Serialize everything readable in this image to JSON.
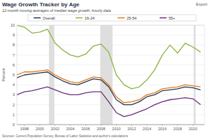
{
  "chart_data": {
    "type": "line",
    "title": "Wage Growth Tracker by Age",
    "subtitle": "12-month moving averages of median wage growth, hourly data",
    "button": "Export",
    "y_label": "Percent",
    "source": "Sources: Current Population Survey, Bureau of Labor Statistics and author's calculations",
    "x": [
      1997,
      1998,
      1999,
      2000,
      2001,
      2002,
      2003,
      2004,
      2005,
      2006,
      2007,
      2008,
      2009,
      2010,
      2011,
      2012,
      2013,
      2014,
      2015,
      2016,
      2017,
      2018,
      2019,
      2020,
      2021
    ],
    "series": [
      {
        "name": "Overall",
        "color": "#26344f",
        "values": [
          4.7,
          5.0,
          5.1,
          5.2,
          5.3,
          4.8,
          4.4,
          4.1,
          4.0,
          4.3,
          4.6,
          4.5,
          3.8,
          2.5,
          2.0,
          2.0,
          2.3,
          2.8,
          3.0,
          3.4,
          3.5,
          3.6,
          3.8,
          3.7,
          3.5
        ]
      },
      {
        "name": "16-24",
        "color": "#8cb33f",
        "values": [
          10.0,
          9.8,
          9.2,
          9.3,
          9.6,
          8.2,
          7.5,
          7.0,
          6.8,
          7.1,
          7.9,
          8.1,
          7.3,
          5.0,
          4.0,
          3.6,
          3.8,
          4.5,
          5.5,
          7.0,
          8.0,
          7.2,
          8.2,
          7.8,
          7.3
        ]
      },
      {
        "name": "25-54",
        "color": "#e07b1f",
        "values": [
          5.0,
          5.3,
          5.3,
          5.4,
          5.5,
          5.0,
          4.6,
          4.3,
          4.2,
          4.5,
          4.8,
          4.7,
          4.0,
          2.8,
          2.2,
          2.3,
          2.5,
          3.0,
          3.2,
          3.6,
          3.7,
          3.8,
          4.0,
          3.9,
          3.8
        ]
      },
      {
        "name": "55+",
        "color": "#6b2d7b",
        "values": [
          3.0,
          3.3,
          3.4,
          3.6,
          3.8,
          3.5,
          3.2,
          3.0,
          3.0,
          3.2,
          3.3,
          3.3,
          2.3,
          1.2,
          0.8,
          1.0,
          1.3,
          1.6,
          2.0,
          2.3,
          2.5,
          2.6,
          2.7,
          2.6,
          2.0
        ]
      }
    ],
    "shaded_ranges": [
      [
        2001.2,
        2001.9
      ],
      [
        2007.9,
        2009.5
      ],
      [
        2020.1,
        2020.35
      ]
    ],
    "xlim": [
      1997,
      2021.5
    ],
    "xticks": [
      1998,
      2000,
      2002,
      2004,
      2006,
      2008,
      2010,
      2012,
      2014,
      2016,
      2018,
      2020
    ],
    "ylim": [
      0,
      10
    ],
    "yticks": [
      0,
      1,
      2,
      3,
      4,
      5,
      6,
      7,
      8,
      9,
      10
    ],
    "grid": true,
    "legend": "top"
  }
}
